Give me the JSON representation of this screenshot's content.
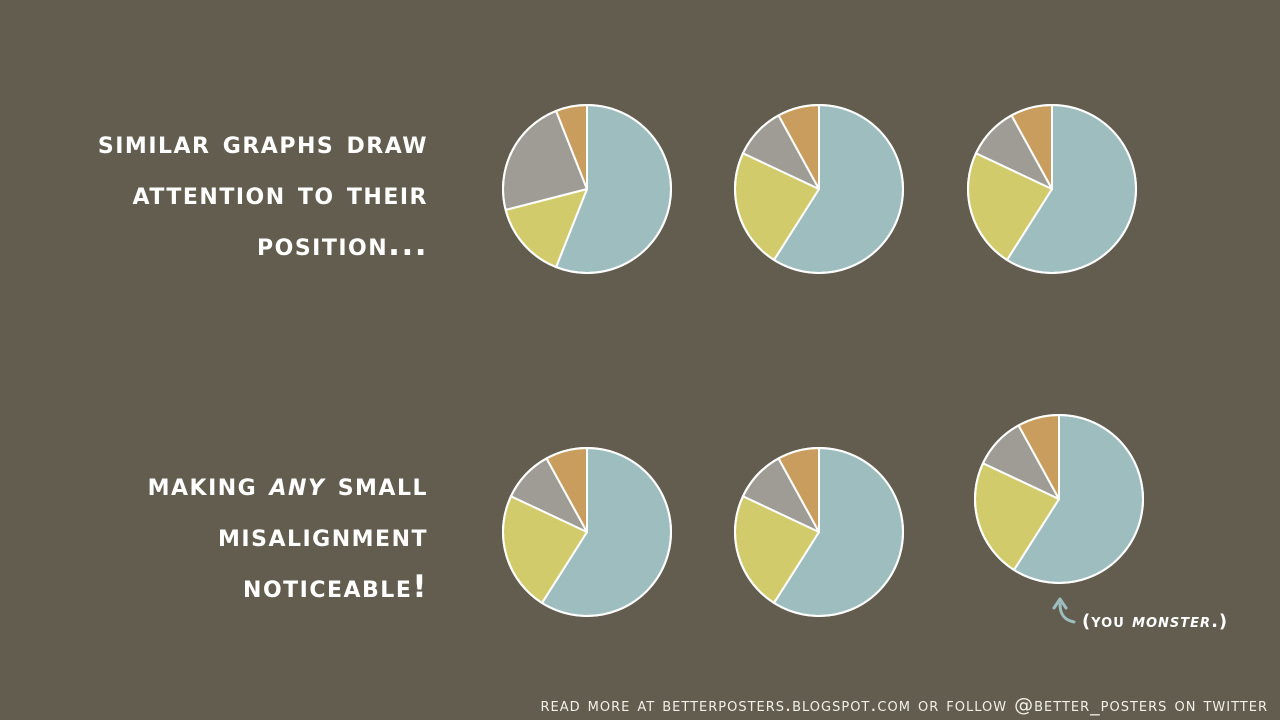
{
  "headline_top": {
    "lines": [
      "Similar graphs draw",
      "attention to their",
      "position..."
    ]
  },
  "headline_bottom": {
    "line1_pre": "Making ",
    "line1_emph": "any",
    "line1_post": " small",
    "line2": "misalignment",
    "line3": "noticeable!"
  },
  "note": {
    "open": "(you ",
    "emph": "monster",
    "close": ".)"
  },
  "footer": "Read more at betterposters.blogspot.com or follow @better_posters on Twitter",
  "colors": {
    "background": "#625d4f",
    "teal": "#9dbdbe",
    "yellow": "#d2cb6c",
    "gray": "#9f9c96",
    "orange": "#c99d5d",
    "stroke": "#ffffff"
  },
  "chart_data": [
    {
      "type": "pie",
      "slices": [
        {
          "color": "teal",
          "value": 56
        },
        {
          "color": "yellow",
          "value": 15
        },
        {
          "color": "gray",
          "value": 23
        },
        {
          "color": "orange",
          "value": 6
        }
      ]
    },
    {
      "type": "pie",
      "slices": [
        {
          "color": "teal",
          "value": 59
        },
        {
          "color": "yellow",
          "value": 23
        },
        {
          "color": "gray",
          "value": 10
        },
        {
          "color": "orange",
          "value": 8
        }
      ]
    },
    {
      "type": "pie",
      "slices": [
        {
          "color": "teal",
          "value": 59
        },
        {
          "color": "yellow",
          "value": 23
        },
        {
          "color": "gray",
          "value": 10
        },
        {
          "color": "orange",
          "value": 8
        }
      ]
    },
    {
      "type": "pie",
      "slices": [
        {
          "color": "teal",
          "value": 59
        },
        {
          "color": "yellow",
          "value": 23
        },
        {
          "color": "gray",
          "value": 10
        },
        {
          "color": "orange",
          "value": 8
        }
      ]
    },
    {
      "type": "pie",
      "slices": [
        {
          "color": "teal",
          "value": 59
        },
        {
          "color": "yellow",
          "value": 23
        },
        {
          "color": "gray",
          "value": 10
        },
        {
          "color": "orange",
          "value": 8
        }
      ]
    },
    {
      "type": "pie",
      "slices": [
        {
          "color": "teal",
          "value": 59
        },
        {
          "color": "yellow",
          "value": 23
        },
        {
          "color": "gray",
          "value": 10
        },
        {
          "color": "orange",
          "value": 8
        }
      ]
    }
  ]
}
